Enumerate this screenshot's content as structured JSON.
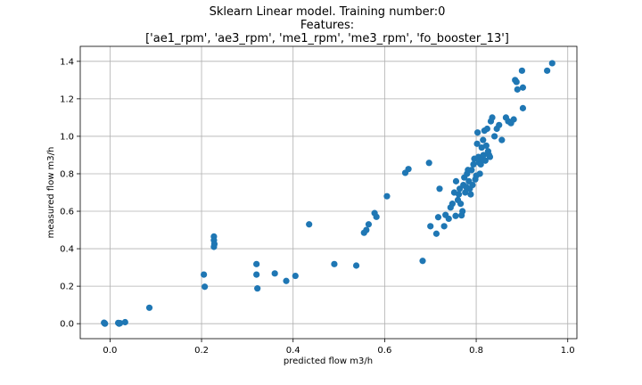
{
  "chart_data": {
    "type": "scatter",
    "title_lines": [
      "Sklearn Linear model. Training number:0",
      "Features:",
      "['ae1_rpm', 'ae3_rpm', 'me1_rpm', 'me3_rpm', 'fo_booster_13']"
    ],
    "xlabel": "predicted flow m3/h",
    "ylabel": "measured flow m3/h",
    "xlim": [
      -0.065,
      1.02
    ],
    "ylim": [
      -0.08,
      1.48
    ],
    "xticks": [
      0.0,
      0.2,
      0.4,
      0.6,
      0.8,
      1.0
    ],
    "xtick_labels": [
      "0.0",
      "0.2",
      "0.4",
      "0.6",
      "0.8",
      "1.0"
    ],
    "yticks": [
      0.0,
      0.2,
      0.4,
      0.6,
      0.8,
      1.0,
      1.2,
      1.4
    ],
    "ytick_labels": [
      "0.0",
      "0.2",
      "0.4",
      "0.6",
      "0.8",
      "1.0",
      "1.2",
      "1.4"
    ],
    "grid": true,
    "marker_color": "#1f77b4",
    "points": [
      [
        -0.012,
        0.003
      ],
      [
        -0.011,
        0.0
      ],
      [
        -0.013,
        0.005
      ],
      [
        0.018,
        0.004
      ],
      [
        0.02,
        0.0
      ],
      [
        0.022,
        0.003
      ],
      [
        0.033,
        0.008
      ],
      [
        0.086,
        0.085
      ],
      [
        0.205,
        0.262
      ],
      [
        0.207,
        0.197
      ],
      [
        0.227,
        0.465
      ],
      [
        0.227,
        0.445
      ],
      [
        0.228,
        0.425
      ],
      [
        0.227,
        0.41
      ],
      [
        0.32,
        0.318
      ],
      [
        0.32,
        0.262
      ],
      [
        0.322,
        0.188
      ],
      [
        0.36,
        0.268
      ],
      [
        0.385,
        0.228
      ],
      [
        0.405,
        0.255
      ],
      [
        0.435,
        0.53
      ],
      [
        0.49,
        0.318
      ],
      [
        0.538,
        0.31
      ],
      [
        0.555,
        0.485
      ],
      [
        0.56,
        0.5
      ],
      [
        0.565,
        0.53
      ],
      [
        0.578,
        0.59
      ],
      [
        0.582,
        0.57
      ],
      [
        0.605,
        0.68
      ],
      [
        0.645,
        0.805
      ],
      [
        0.652,
        0.825
      ],
      [
        0.683,
        0.335
      ],
      [
        0.697,
        0.858
      ],
      [
        0.7,
        0.52
      ],
      [
        0.713,
        0.48
      ],
      [
        0.717,
        0.568
      ],
      [
        0.72,
        0.72
      ],
      [
        0.73,
        0.52
      ],
      [
        0.733,
        0.58
      ],
      [
        0.74,
        0.56
      ],
      [
        0.744,
        0.62
      ],
      [
        0.748,
        0.64
      ],
      [
        0.752,
        0.7
      ],
      [
        0.755,
        0.575
      ],
      [
        0.756,
        0.76
      ],
      [
        0.76,
        0.66
      ],
      [
        0.762,
        0.69
      ],
      [
        0.764,
        0.72
      ],
      [
        0.766,
        0.64
      ],
      [
        0.768,
        0.578
      ],
      [
        0.77,
        0.6
      ],
      [
        0.772,
        0.74
      ],
      [
        0.774,
        0.78
      ],
      [
        0.776,
        0.7
      ],
      [
        0.778,
        0.73
      ],
      [
        0.78,
        0.8
      ],
      [
        0.782,
        0.82
      ],
      [
        0.784,
        0.76
      ],
      [
        0.786,
        0.72
      ],
      [
        0.788,
        0.69
      ],
      [
        0.79,
        0.82
      ],
      [
        0.792,
        0.74
      ],
      [
        0.794,
        0.85
      ],
      [
        0.796,
        0.88
      ],
      [
        0.798,
        0.77
      ],
      [
        0.8,
        0.79
      ],
      [
        0.802,
        0.96
      ],
      [
        0.803,
        1.02
      ],
      [
        0.805,
        0.89
      ],
      [
        0.806,
        0.86
      ],
      [
        0.808,
        0.8
      ],
      [
        0.81,
        0.85
      ],
      [
        0.812,
        0.94
      ],
      [
        0.814,
        0.88
      ],
      [
        0.815,
        0.98
      ],
      [
        0.816,
        0.9
      ],
      [
        0.818,
        1.03
      ],
      [
        0.82,
        0.87
      ],
      [
        0.822,
        0.95
      ],
      [
        0.824,
        1.04
      ],
      [
        0.826,
        0.92
      ],
      [
        0.828,
        0.9
      ],
      [
        0.83,
        0.89
      ],
      [
        0.832,
        1.08
      ],
      [
        0.835,
        1.1
      ],
      [
        0.84,
        1.0
      ],
      [
        0.845,
        1.04
      ],
      [
        0.85,
        1.06
      ],
      [
        0.856,
        0.98
      ],
      [
        0.865,
        1.1
      ],
      [
        0.87,
        1.08
      ],
      [
        0.876,
        1.07
      ],
      [
        0.882,
        1.09
      ],
      [
        0.885,
        1.3
      ],
      [
        0.888,
        1.29
      ],
      [
        0.89,
        1.25
      ],
      [
        0.9,
        1.35
      ],
      [
        0.902,
        1.26
      ],
      [
        0.902,
        1.15
      ],
      [
        0.955,
        1.35
      ],
      [
        0.966,
        1.39
      ]
    ]
  }
}
